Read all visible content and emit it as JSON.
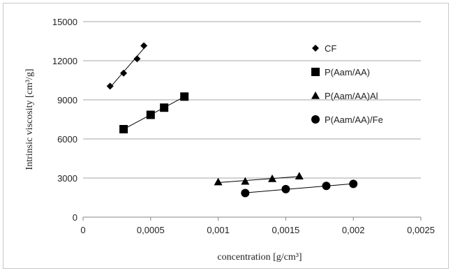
{
  "chart_data": {
    "type": "scatter",
    "title": "",
    "xlabel": "concentration [g/cm³]",
    "ylabel": "Intrinsic viscosity [cm³/g]",
    "xlim": [
      0,
      0.0025
    ],
    "ylim": [
      0,
      15000
    ],
    "x_tick_labels": [
      "0",
      "0,0005",
      "0,001",
      "0,0015",
      "0,002",
      "0,0025"
    ],
    "y_tick_labels": [
      "0",
      "3000",
      "6000",
      "9000",
      "12000",
      "15000"
    ],
    "grid": "horizontal",
    "legend_position": "right",
    "trendlines": "linear",
    "series": [
      {
        "name": "CF",
        "marker": "diamond",
        "x": [
          0.0002,
          0.0003,
          0.0004,
          0.00045
        ],
        "y": [
          10050,
          11050,
          12150,
          13150
        ]
      },
      {
        "name": "P(Aam/AA)",
        "marker": "square",
        "x": [
          0.0003,
          0.0005,
          0.0006,
          0.00075
        ],
        "y": [
          6750,
          7850,
          8400,
          9250
        ]
      },
      {
        "name": "P(Aam/AA)Al",
        "marker": "triangle",
        "x": [
          0.001,
          0.0012,
          0.0014,
          0.0016
        ],
        "y": [
          2700,
          2750,
          2950,
          3150
        ]
      },
      {
        "name": "P(Aam/AA)/Fe",
        "marker": "circle",
        "x": [
          0.0012,
          0.0015,
          0.0018,
          0.002
        ],
        "y": [
          1850,
          2150,
          2400,
          2550
        ]
      }
    ]
  }
}
